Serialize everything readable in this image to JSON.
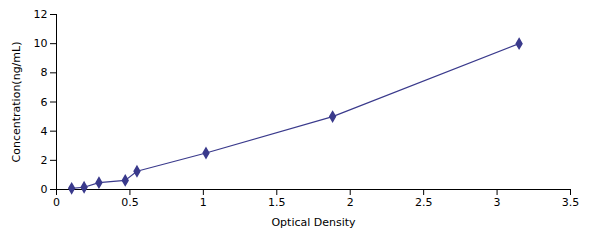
{
  "chart_data": {
    "type": "line",
    "x": [
      0.103,
      0.188,
      0.289,
      0.468,
      0.548,
      1.018,
      1.88,
      3.15
    ],
    "values": [
      0.078,
      0.156,
      0.469,
      0.625,
      1.25,
      2.5,
      5.0,
      10.0
    ],
    "color": "#3a3a8c",
    "marker": "diamond",
    "xlabel": "Optical Density",
    "ylabel": "Concentration(ng/mL)",
    "xlim": [
      0,
      3.5
    ],
    "ylim": [
      0,
      12
    ],
    "xticks": [
      0,
      0.5,
      1,
      1.5,
      2,
      2.5,
      3,
      3.5
    ],
    "yticks": [
      0,
      2,
      4,
      6,
      8,
      10,
      12
    ],
    "grid": false
  }
}
